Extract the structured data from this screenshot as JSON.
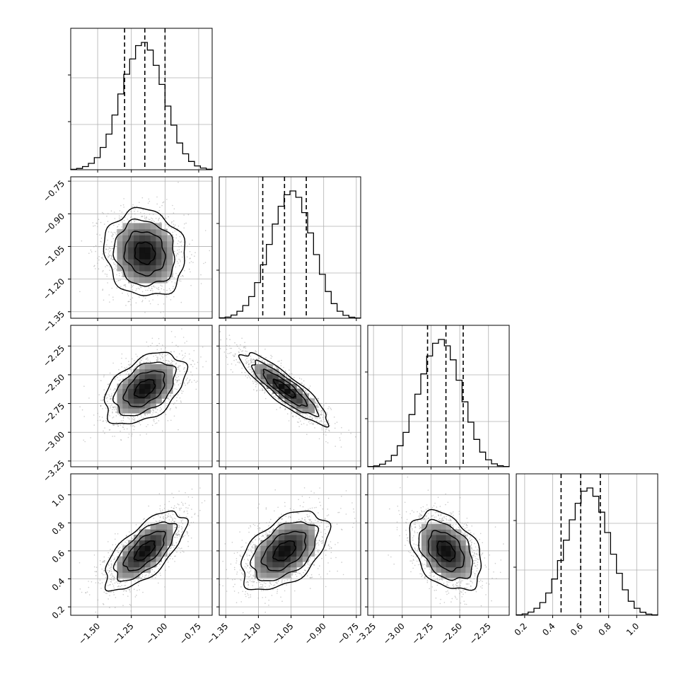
{
  "chart_data": {
    "type": "corner",
    "parameters": [
      {
        "range": [
          -1.7,
          -0.65
        ],
        "ticks": [
          "−1.50",
          "−1.25",
          "−1.00",
          "−0.75"
        ],
        "tick_values": [
          -1.5,
          -1.25,
          -1.0,
          -0.75
        ],
        "quantiles": [
          -1.3,
          -1.15,
          -1.0
        ],
        "histogram": [
          0.3,
          1.0,
          2.5,
          5.0,
          9.5,
          17.5,
          28.0,
          43.0,
          59.5,
          75.0,
          87.0,
          97.5,
          100.0,
          94.0,
          82.0,
          67.0,
          50.0,
          35.0,
          21.0,
          12.5,
          6.5,
          3.0,
          1.3,
          0.4
        ]
      },
      {
        "range": [
          -1.38,
          -0.73
        ],
        "ticks": [
          "−1.35",
          "−1.20",
          "−1.05",
          "−0.90",
          "−0.75"
        ],
        "tick_values": [
          -1.35,
          -1.2,
          -1.05,
          -0.9,
          -0.75
        ],
        "quantiles": [
          -1.18,
          -1.08,
          -0.98
        ],
        "histogram": [
          0.3,
          0.9,
          2.5,
          5.5,
          10.0,
          17.0,
          28.0,
          42.0,
          58.0,
          74.0,
          88.0,
          97.0,
          100.0,
          95.0,
          83.0,
          67.0,
          50.0,
          34.5,
          21.0,
          11.5,
          5.5,
          2.3,
          0.8,
          0.2
        ]
      },
      {
        "range": [
          -3.3,
          -2.07
        ],
        "ticks": [
          "−3.25",
          "−3.00",
          "−2.75",
          "−2.50",
          "−2.25"
        ],
        "tick_values": [
          -3.25,
          -3.0,
          -2.75,
          -2.5,
          -2.25
        ],
        "quantiles": [
          -2.78,
          -2.62,
          -2.47
        ],
        "histogram": [
          0.2,
          0.7,
          2.0,
          4.5,
          9.0,
          16.5,
          27.0,
          41.0,
          57.0,
          73.0,
          87.0,
          97.0,
          100.0,
          95.0,
          84.0,
          68.0,
          51.0,
          35.0,
          21.5,
          11.5,
          5.5,
          2.3,
          0.8,
          0.2
        ]
      },
      {
        "range": [
          0.14,
          1.15
        ],
        "ticks": [
          "0.2",
          "0.4",
          "0.6",
          "0.8",
          "1.0"
        ],
        "tick_values": [
          0.2,
          0.4,
          0.6,
          0.8,
          1.0
        ],
        "quantiles": [
          0.46,
          0.6,
          0.74
        ],
        "histogram": [
          0.3,
          1.0,
          2.5,
          5.5,
          10.0,
          17.5,
          28.5,
          43.0,
          59.0,
          75.0,
          88.0,
          97.5,
          100.0,
          93.5,
          81.0,
          65.0,
          48.0,
          33.0,
          20.0,
          11.0,
          5.5,
          2.4,
          0.9,
          0.3
        ]
      }
    ],
    "correlations": [
      {
        "row": 1,
        "col": 0,
        "corr": -0.1
      },
      {
        "row": 2,
        "col": 0,
        "corr": 0.45
      },
      {
        "row": 2,
        "col": 1,
        "corr": -0.88
      },
      {
        "row": 3,
        "col": 0,
        "corr": 0.68
      },
      {
        "row": 3,
        "col": 1,
        "corr": 0.48
      },
      {
        "row": 3,
        "col": 2,
        "corr": -0.38
      }
    ],
    "contour_levels_sigma": [
      0.5,
      1.0,
      1.5,
      2.0
    ],
    "grid": true,
    "colors": {
      "hist_line": "#000000",
      "quantile_line": "#000000",
      "contour": "#000000",
      "scatter": "#9a9a9a",
      "density_dark": "#000000",
      "density_light": "#ffffff",
      "grid": "#b0b0b0",
      "frame": "#000000"
    }
  }
}
